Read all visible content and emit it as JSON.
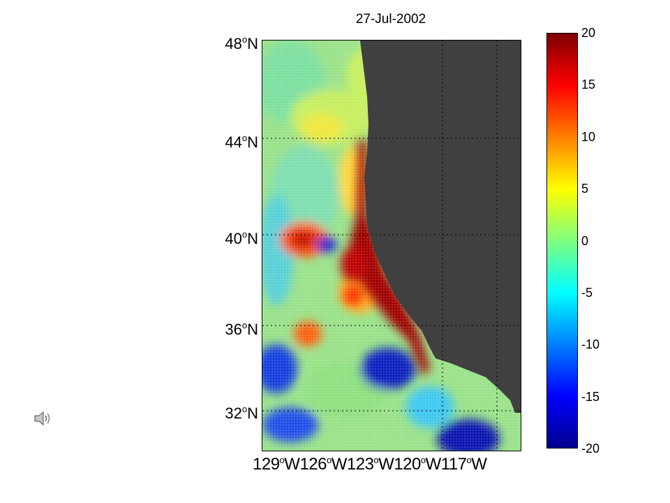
{
  "title": "27-Jul-2002",
  "lat_labels": [
    {
      "deg": "48",
      "hemi": "N"
    },
    {
      "deg": "44",
      "hemi": "N"
    },
    {
      "deg": "40",
      "hemi": "N"
    },
    {
      "deg": "36",
      "hemi": "N"
    },
    {
      "deg": "32",
      "hemi": "N"
    }
  ],
  "lon_labels": [
    {
      "deg": "129",
      "hemi": "W"
    },
    {
      "deg": "126",
      "hemi": "W"
    },
    {
      "deg": "123",
      "hemi": "W"
    },
    {
      "deg": "120",
      "hemi": "W"
    },
    {
      "deg": "117",
      "hemi": "W"
    }
  ],
  "colorbar": {
    "range": [
      -20,
      20
    ],
    "ticks": [
      "20",
      "15",
      "10",
      "5",
      "0",
      "-5",
      "-10",
      "-15",
      "-20"
    ],
    "colormap": "jet"
  },
  "colors": {
    "land": "#404040",
    "high": "#7f0000",
    "low": "#00008f"
  },
  "icons": {
    "audio": "speaker-icon"
  }
}
